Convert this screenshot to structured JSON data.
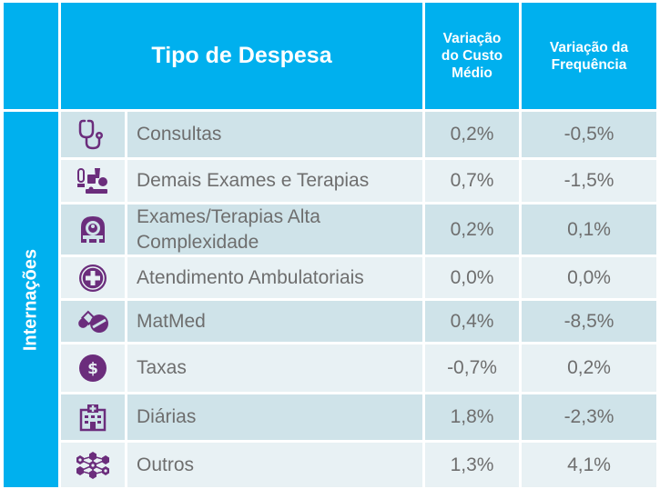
{
  "header": {
    "tipo": "Tipo de Despesa",
    "custo": [
      "Variação",
      "do Custo",
      "Médio"
    ],
    "freq": [
      "Variação da",
      "Frequência"
    ]
  },
  "side_label": "Internações",
  "colors": {
    "header": "#00b0ee",
    "row_dark": "#cfe3e9",
    "row_light": "#e8f1f4",
    "icon": "#6b2d7c",
    "text": "#6e6e6e"
  },
  "rows": [
    {
      "icon": "stethoscope-icon",
      "label": "Consultas",
      "custo": "0,2%",
      "freq": "-0,5%"
    },
    {
      "icon": "microscope-icon",
      "label": "Demais Exames e Terapias",
      "custo": "0,7%",
      "freq": "-1,5%"
    },
    {
      "icon": "mri-scanner-icon",
      "label": "Exames/Terapias Alta Complexidade",
      "custo": "0,2%",
      "freq": "0,1%"
    },
    {
      "icon": "medical-cross-icon",
      "label": "Atendimento Ambulatoriais",
      "custo": "0,0%",
      "freq": "0,0%"
    },
    {
      "icon": "pills-icon",
      "label": "MatMed",
      "custo": "0,4%",
      "freq": "-8,5%"
    },
    {
      "icon": "dollar-coin-icon",
      "label": "Taxas",
      "custo": "-0,7%",
      "freq": "0,2%"
    },
    {
      "icon": "hospital-icon",
      "label": "Diárias",
      "custo": "1,8%",
      "freq": "-2,3%"
    },
    {
      "icon": "hexagon-network-icon",
      "label": "Outros",
      "custo": "1,3%",
      "freq": "4,1%"
    }
  ]
}
